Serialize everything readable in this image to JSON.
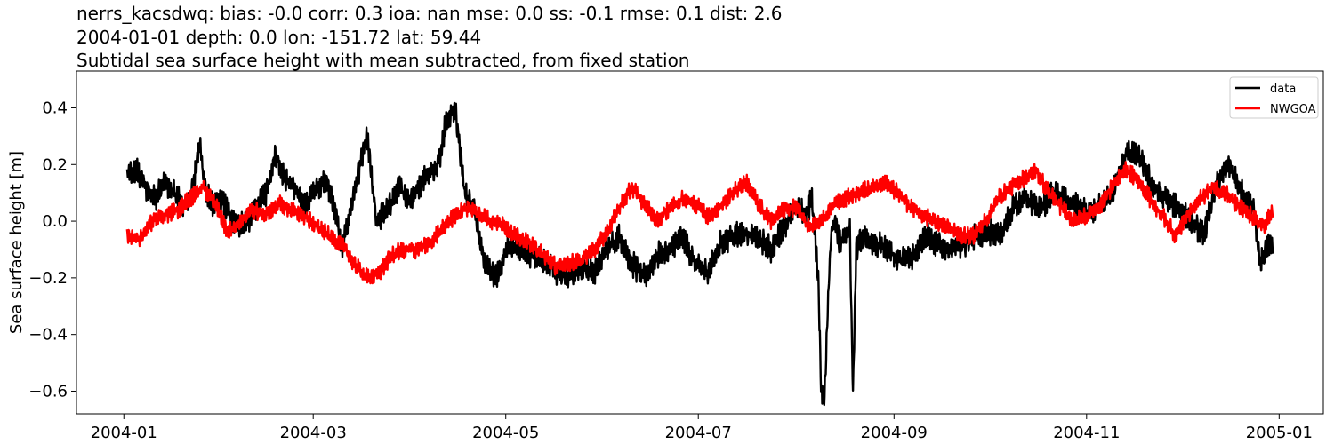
{
  "titles": [
    "nerrs_kacsdwq: bias: -0.0  corr: 0.3  ioa: nan  mse: 0.0  ss: -0.1  rmse: 0.1  dist: 2.6",
    "2004-01-01 depth: 0.0 lon: -151.72 lat: 59.44",
    "Subtidal sea surface height with mean subtracted, from fixed station"
  ],
  "chart_data": {
    "type": "line",
    "xlabel": "",
    "ylabel": "Sea surface height [m]",
    "xlim": [
      "2003-12-17",
      "2005-01-15"
    ],
    "ylim": [
      -0.68,
      0.53
    ],
    "x_ticks": [
      "2004-01",
      "2004-03",
      "2004-05",
      "2004-07",
      "2004-09",
      "2004-11",
      "2005-01"
    ],
    "y_ticks": [
      0.4,
      0.2,
      0.0,
      -0.2,
      -0.4,
      -0.6
    ],
    "y_tick_labels": [
      "0.4",
      "0.2",
      "0.0",
      "−0.2",
      "−0.4",
      "−0.6"
    ],
    "grid": false,
    "legend_position": "top-right",
    "series": [
      {
        "name": "data",
        "color": "#000000",
        "x": [
          "2004-01-02",
          "2004-01-05",
          "2004-01-08",
          "2004-01-11",
          "2004-01-14",
          "2004-01-17",
          "2004-01-20",
          "2004-01-23",
          "2004-01-25",
          "2004-01-27",
          "2004-01-29",
          "2004-02-01",
          "2004-02-05",
          "2004-02-08",
          "2004-02-12",
          "2004-02-15",
          "2004-02-18",
          "2004-02-21",
          "2004-02-24",
          "2004-02-27",
          "2004-03-01",
          "2004-03-05",
          "2004-03-08",
          "2004-03-10",
          "2004-03-12",
          "2004-03-15",
          "2004-03-18",
          "2004-03-21",
          "2004-03-25",
          "2004-03-28",
          "2004-04-01",
          "2004-04-05",
          "2004-04-08",
          "2004-04-10",
          "2004-04-12",
          "2004-04-15",
          "2004-04-18",
          "2004-04-21",
          "2004-04-24",
          "2004-04-28",
          "2004-05-02",
          "2004-05-05",
          "2004-05-09",
          "2004-05-13",
          "2004-05-17",
          "2004-05-21",
          "2004-05-25",
          "2004-05-29",
          "2004-06-02",
          "2004-06-06",
          "2004-06-10",
          "2004-06-14",
          "2004-06-18",
          "2004-06-22",
          "2004-06-26",
          "2004-06-30",
          "2004-07-04",
          "2004-07-08",
          "2004-07-12",
          "2004-07-16",
          "2004-07-20",
          "2004-07-24",
          "2004-07-28",
          "2004-08-01",
          "2004-08-04",
          "2004-08-06",
          "2004-08-08",
          "2004-08-09",
          "2004-08-10",
          "2004-08-11",
          "2004-08-12",
          "2004-08-13",
          "2004-08-15",
          "2004-08-17",
          "2004-08-18",
          "2004-08-19",
          "2004-08-20",
          "2004-08-22",
          "2004-08-26",
          "2004-08-30",
          "2004-09-03",
          "2004-09-07",
          "2004-09-11",
          "2004-09-15",
          "2004-09-19",
          "2004-09-23",
          "2004-09-27",
          "2004-10-01",
          "2004-10-05",
          "2004-10-09",
          "2004-10-13",
          "2004-10-17",
          "2004-10-21",
          "2004-10-25",
          "2004-10-29",
          "2004-11-02",
          "2004-11-06",
          "2004-11-10",
          "2004-11-14",
          "2004-11-18",
          "2004-11-22",
          "2004-11-26",
          "2004-11-30",
          "2004-12-04",
          "2004-12-08",
          "2004-12-12",
          "2004-12-16",
          "2004-12-20",
          "2004-12-24",
          "2004-12-26",
          "2004-12-28",
          "2004-12-30"
        ],
        "y": [
          0.16,
          0.18,
          0.12,
          0.08,
          0.14,
          0.1,
          0.05,
          0.12,
          0.28,
          0.1,
          0.06,
          0.07,
          0.0,
          -0.02,
          0.05,
          0.1,
          0.24,
          0.15,
          0.12,
          0.05,
          0.1,
          0.15,
          0.04,
          -0.1,
          0.0,
          0.15,
          0.3,
          0.0,
          0.05,
          0.12,
          0.08,
          0.15,
          0.18,
          0.22,
          0.35,
          0.4,
          0.1,
          0.05,
          -0.15,
          -0.2,
          -0.08,
          -0.1,
          -0.12,
          -0.14,
          -0.18,
          -0.2,
          -0.16,
          -0.18,
          -0.1,
          -0.05,
          -0.15,
          -0.2,
          -0.12,
          -0.1,
          -0.05,
          -0.15,
          -0.18,
          -0.08,
          -0.05,
          -0.04,
          -0.06,
          -0.1,
          -0.02,
          0.05,
          0.02,
          0.08,
          -0.2,
          -0.62,
          -0.62,
          -0.3,
          -0.05,
          0.0,
          -0.08,
          -0.05,
          -0.02,
          -0.62,
          -0.1,
          -0.05,
          -0.08,
          -0.1,
          -0.14,
          -0.12,
          -0.05,
          -0.08,
          -0.1,
          -0.08,
          -0.05,
          -0.04,
          -0.05,
          0.06,
          0.08,
          0.04,
          0.1,
          0.08,
          0.05,
          0.02,
          0.06,
          0.12,
          0.25,
          0.22,
          0.12,
          0.08,
          0.05,
          0.0,
          -0.05,
          0.12,
          0.2,
          0.1,
          0.05,
          -0.15,
          -0.1,
          -0.08
        ],
        "noise": 0.045
      },
      {
        "name": "NWGOA",
        "color": "#ff0000",
        "x": [
          "2004-01-02",
          "2004-01-06",
          "2004-01-10",
          "2004-01-14",
          "2004-01-18",
          "2004-01-22",
          "2004-01-26",
          "2004-01-30",
          "2004-02-03",
          "2004-02-07",
          "2004-02-11",
          "2004-02-15",
          "2004-02-19",
          "2004-02-23",
          "2004-02-27",
          "2004-03-02",
          "2004-03-06",
          "2004-03-10",
          "2004-03-14",
          "2004-03-18",
          "2004-03-22",
          "2004-03-26",
          "2004-03-30",
          "2004-04-03",
          "2004-04-07",
          "2004-04-11",
          "2004-04-15",
          "2004-04-19",
          "2004-04-23",
          "2004-04-27",
          "2004-05-01",
          "2004-05-05",
          "2004-05-09",
          "2004-05-13",
          "2004-05-17",
          "2004-05-21",
          "2004-05-25",
          "2004-05-29",
          "2004-06-02",
          "2004-06-06",
          "2004-06-10",
          "2004-06-14",
          "2004-06-18",
          "2004-06-22",
          "2004-06-26",
          "2004-06-30",
          "2004-07-04",
          "2004-07-08",
          "2004-07-12",
          "2004-07-16",
          "2004-07-20",
          "2004-07-24",
          "2004-07-28",
          "2004-08-01",
          "2004-08-05",
          "2004-08-09",
          "2004-08-13",
          "2004-08-17",
          "2004-08-21",
          "2004-08-25",
          "2004-08-29",
          "2004-09-02",
          "2004-09-06",
          "2004-09-10",
          "2004-09-14",
          "2004-09-18",
          "2004-09-22",
          "2004-09-26",
          "2004-09-30",
          "2004-10-04",
          "2004-10-08",
          "2004-10-12",
          "2004-10-16",
          "2004-10-20",
          "2004-10-24",
          "2004-10-28",
          "2004-11-01",
          "2004-11-05",
          "2004-11-09",
          "2004-11-13",
          "2004-11-17",
          "2004-11-21",
          "2004-11-25",
          "2004-11-29",
          "2004-12-03",
          "2004-12-07",
          "2004-12-11",
          "2004-12-15",
          "2004-12-19",
          "2004-12-23",
          "2004-12-27",
          "2004-12-30"
        ],
        "y": [
          -0.05,
          -0.06,
          0.0,
          0.02,
          0.04,
          0.08,
          0.12,
          0.06,
          -0.04,
          0.0,
          0.04,
          0.02,
          0.06,
          0.04,
          0.02,
          -0.02,
          -0.05,
          -0.08,
          -0.15,
          -0.2,
          -0.18,
          -0.12,
          -0.1,
          -0.1,
          -0.08,
          -0.02,
          0.02,
          0.05,
          0.02,
          0.0,
          -0.02,
          -0.06,
          -0.08,
          -0.12,
          -0.16,
          -0.15,
          -0.14,
          -0.1,
          -0.04,
          0.05,
          0.12,
          0.06,
          0.0,
          0.05,
          0.08,
          0.06,
          0.02,
          0.05,
          0.1,
          0.14,
          0.06,
          0.0,
          0.04,
          0.05,
          -0.02,
          0.0,
          0.06,
          0.08,
          0.1,
          0.12,
          0.14,
          0.1,
          0.05,
          0.02,
          0.0,
          -0.02,
          -0.05,
          -0.05,
          0.0,
          0.08,
          0.12,
          0.15,
          0.18,
          0.1,
          0.05,
          0.0,
          0.02,
          0.05,
          0.12,
          0.18,
          0.15,
          0.08,
          0.02,
          -0.05,
          0.02,
          0.08,
          0.12,
          0.1,
          0.05,
          0.02,
          -0.02,
          0.04
        ],
        "noise": 0.03
      }
    ]
  }
}
